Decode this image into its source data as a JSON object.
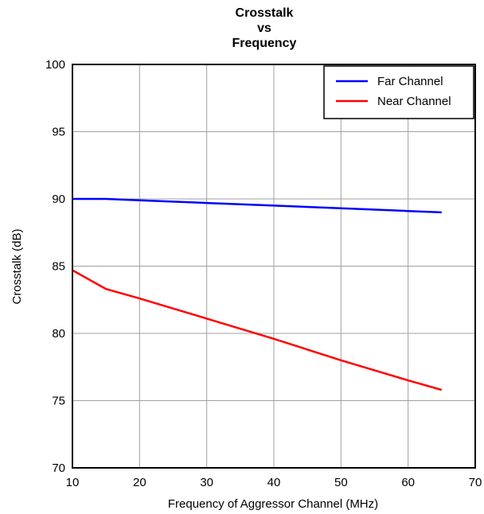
{
  "chart_data": {
    "type": "line",
    "title_lines": [
      "Crosstalk",
      "vs",
      "Frequency"
    ],
    "xlabel": "Frequency of Aggressor Channel (MHz)",
    "ylabel": "Crosstalk (dB)",
    "xlim": [
      10,
      70
    ],
    "ylim": [
      70,
      100
    ],
    "xticks": [
      10,
      20,
      30,
      40,
      50,
      60,
      70
    ],
    "yticks": [
      70,
      75,
      80,
      85,
      90,
      95,
      100
    ],
    "grid": true,
    "legend_position": "top-right",
    "series": [
      {
        "name": "Far Channel",
        "color": "#0000ff",
        "points": [
          [
            10,
            90.0
          ],
          [
            15,
            90.0
          ],
          [
            20,
            89.9
          ],
          [
            30,
            89.7
          ],
          [
            40,
            89.5
          ],
          [
            50,
            89.3
          ],
          [
            60,
            89.1
          ],
          [
            65,
            89.0
          ]
        ]
      },
      {
        "name": "Near Channel",
        "color": "#ff0000",
        "points": [
          [
            10,
            84.7
          ],
          [
            15,
            83.3
          ],
          [
            20,
            82.6
          ],
          [
            30,
            81.1
          ],
          [
            40,
            79.6
          ],
          [
            50,
            78.0
          ],
          [
            60,
            76.5
          ],
          [
            65,
            75.8
          ]
        ]
      }
    ]
  }
}
